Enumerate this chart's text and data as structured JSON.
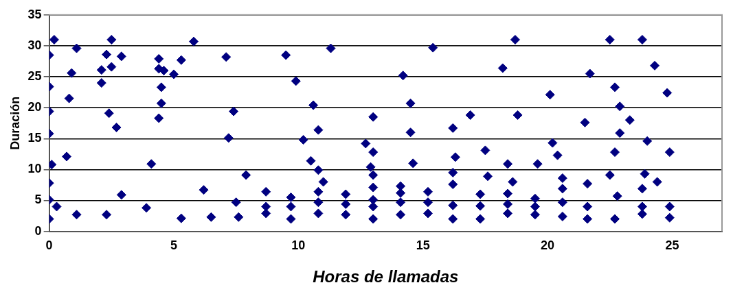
{
  "chart_data": {
    "type": "scatter",
    "xlabel": "Horas de llamadas",
    "ylabel": "Duración",
    "color": "#000080",
    "marker": "diamond",
    "grid": "y",
    "legend": false,
    "xlim": [
      0,
      27
    ],
    "xticks": [
      0,
      5,
      10,
      15,
      20,
      25
    ],
    "ylim": [
      0,
      35
    ],
    "yticks": [
      0,
      5,
      10,
      15,
      20,
      25,
      30,
      35
    ],
    "x": [
      0.2,
      1.1,
      2.5,
      0,
      2.3,
      2.9,
      0.9,
      2.1,
      2.5,
      2.1,
      0,
      0.8,
      0,
      2.4,
      2.7,
      0,
      0.7,
      0.1,
      0,
      2.9,
      0,
      0.3,
      1.1,
      2.3,
      0,
      4.1,
      3.9,
      5.8,
      4.4,
      5.3,
      7.1,
      4.4,
      4.6,
      5,
      4.5,
      4.5,
      4.4,
      7.4,
      7.2,
      7.9,
      6.2,
      7.5,
      5.3,
      6.5,
      7.6,
      8.7,
      8.7,
      8.7,
      9.5,
      9.9,
      11.3,
      10.6,
      10.8,
      10.2,
      13,
      10.5,
      10.8,
      11,
      9.7,
      9.7,
      9.7,
      10.8,
      10.8,
      10.8,
      11.9,
      11.9,
      11.9,
      12.7,
      13,
      12.9,
      13,
      13,
      13,
      13,
      13,
      15.4,
      14.2,
      14.5,
      14.5,
      14.6,
      14.1,
      14.1,
      14.1,
      14.1,
      15.2,
      15.2,
      15.2,
      16.9,
      16.2,
      16.3,
      16.2,
      16.2,
      16.2,
      16.2,
      17.5,
      17.6,
      17.3,
      17.3,
      17.3,
      18.7,
      18.2,
      18.8,
      18.4,
      18.6,
      18.4,
      18.4,
      18.4,
      20.1,
      20.2,
      20.4,
      19.6,
      19.5,
      19.5,
      19.5,
      20.6,
      20.6,
      20.6,
      20.6,
      21.7,
      21.5,
      21.6,
      21.6,
      21.6,
      22.5,
      23.8,
      24.3,
      22.7,
      24.8,
      22.9,
      23.3,
      22.9,
      24,
      22.7,
      24.9,
      22.5,
      23.9,
      24.4,
      23.8,
      22.8,
      22.7,
      23.8,
      23.8,
      24.9,
      24.9
    ],
    "values": [
      31,
      29.6,
      31,
      28.5,
      28.6,
      28.3,
      25.6,
      26.1,
      26.6,
      24,
      23.4,
      21.5,
      19.4,
      19.1,
      16.8,
      15.8,
      12.1,
      10.8,
      7.8,
      5.9,
      5.1,
      4,
      2.7,
      2.7,
      2,
      10.9,
      3.8,
      30.7,
      27.9,
      27.7,
      28.2,
      26.3,
      26,
      25.4,
      23.3,
      20.7,
      18.3,
      19.4,
      15.1,
      9.1,
      6.7,
      4.7,
      2.1,
      2.3,
      2.3,
      6.4,
      4,
      2.9,
      28.5,
      24.3,
      29.6,
      20.4,
      16.4,
      14.8,
      18.5,
      11.4,
      9.9,
      8,
      5.5,
      4,
      2,
      6.4,
      4.7,
      2.9,
      6,
      4.4,
      2.7,
      14.2,
      12.8,
      10.4,
      9.1,
      7.1,
      5.1,
      4,
      2,
      29.7,
      25.2,
      20.7,
      16,
      11,
      7.3,
      6.2,
      4.7,
      2.7,
      6.4,
      4.7,
      2.9,
      18.8,
      16.7,
      12,
      9.5,
      7.6,
      4.2,
      2,
      13.1,
      8.9,
      6,
      4.1,
      2,
      31,
      26.4,
      18.8,
      10.9,
      8,
      6.1,
      4.4,
      2.9,
      22.1,
      14.3,
      12.3,
      10.9,
      5.3,
      4,
      2.7,
      8.6,
      6.9,
      4.7,
      2.4,
      25.5,
      17.6,
      7.7,
      4,
      2,
      31,
      31,
      26.8,
      23.3,
      22.4,
      20.2,
      18,
      15.9,
      14.6,
      12.8,
      12.8,
      9.1,
      9.3,
      8,
      6.9,
      5.7,
      2,
      4,
      2.8,
      4,
      2.2
    ]
  }
}
